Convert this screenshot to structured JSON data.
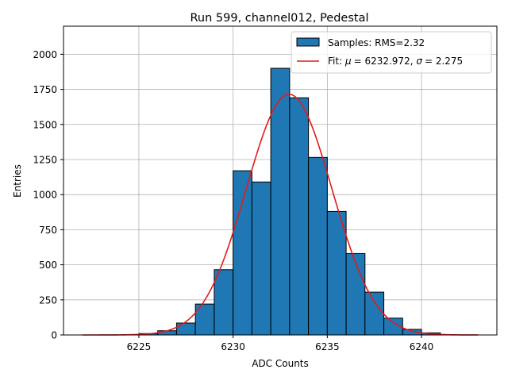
{
  "chart_data": {
    "type": "bar",
    "title": "Run 599, channel012, Pedestal",
    "xlabel": "ADC Counts",
    "ylabel": "Entries",
    "xlim": [
      6221,
      6244
    ],
    "ylim": [
      0,
      2200
    ],
    "xticks": [
      6225,
      6230,
      6235,
      6240
    ],
    "yticks": [
      0,
      250,
      500,
      750,
      1000,
      1250,
      1500,
      1750,
      2000
    ],
    "grid": true,
    "legend_position": "upper right",
    "bin_width": 1,
    "histogram": {
      "name": "Samples: RMS=2.32",
      "color": "#1f77b4",
      "edge_color": "#000000",
      "bin_left_edges": [
        6225,
        6226,
        6227,
        6228,
        6229,
        6230,
        6231,
        6232,
        6233,
        6234,
        6235,
        6236,
        6237,
        6238,
        6239,
        6240
      ],
      "counts": [
        10,
        30,
        85,
        220,
        465,
        1170,
        1090,
        1900,
        1690,
        1265,
        880,
        580,
        305,
        120,
        40,
        15
      ]
    },
    "fit": {
      "name_prefix": "Fit: ",
      "mu_symbol": "μ",
      "mu_value": "= 6232.972, ",
      "sigma_symbol": "σ",
      "sigma_value": "= 2.275",
      "color": "#e31a1c",
      "mu": 6232.972,
      "sigma": 2.275,
      "amplitude": 1715,
      "x_range": [
        6222,
        6243
      ]
    }
  }
}
